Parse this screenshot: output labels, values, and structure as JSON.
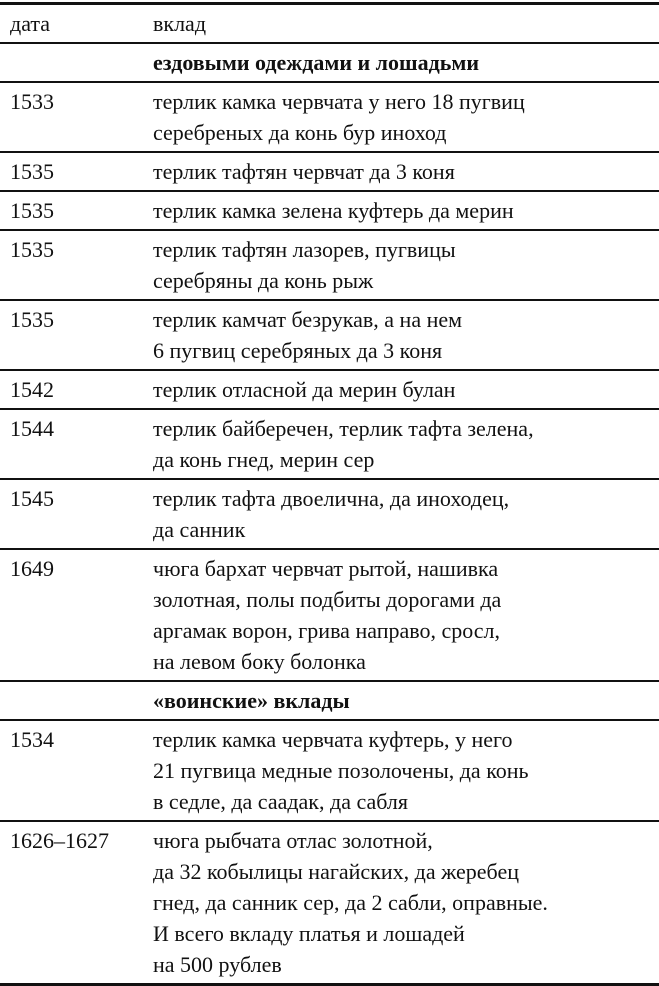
{
  "header": {
    "date": "дата",
    "contribution": "вклад"
  },
  "sections": [
    {
      "title": "ездовыми одеждами и лошадьми",
      "rows": [
        {
          "date": "1533",
          "lines": [
            "терлик камка червчата у него 18 пугвиц",
            "серебреных да конь бур иноход"
          ]
        },
        {
          "date": "1535",
          "lines": [
            "терлик тафтян червчат да 3 коня"
          ]
        },
        {
          "date": "1535",
          "lines": [
            "терлик камка зелена куфтерь да мерин"
          ]
        },
        {
          "date": "1535",
          "lines": [
            "терлик тафтян лазорев, пугвицы",
            "серебряны да конь рыж"
          ]
        },
        {
          "date": "1535",
          "lines": [
            "терлик камчат безрукав, а на нем",
            "6 пугвиц серебряных да 3 коня"
          ]
        },
        {
          "date": "1542",
          "lines": [
            "терлик отласной да мерин булан"
          ]
        },
        {
          "date": "1544",
          "lines": [
            "терлик байберечен, терлик тафта зелена,",
            "да конь гнед, мерин сер"
          ]
        },
        {
          "date": "1545",
          "lines": [
            "терлик тафта двоелична, да иноходец,",
            "да санник"
          ]
        },
        {
          "date": "1649",
          "lines": [
            "чюга бархат червчат рытой, нашивка",
            "золотная, полы подбиты дорогами да",
            "аргамак ворон, грива направо, сросл,",
            "на левом боку болонка"
          ]
        }
      ]
    },
    {
      "title": "«воинские» вклады",
      "rows": [
        {
          "date": "1534",
          "lines": [
            "терлик камка червчата куфтерь, у него",
            "21 пугвица медные позолочены, да конь",
            "в седле, да саадак, да сабля"
          ]
        },
        {
          "date": "1626–1627",
          "lines": [
            "чюга рыбчата отлас золотной,",
            "да 32 кобылицы нагайских, да жеребец",
            "гнед, да санник сер, да 2 сабли, оправные.",
            "И всего вкладу платья и лошадей",
            "на 500 рублев"
          ]
        }
      ]
    }
  ]
}
